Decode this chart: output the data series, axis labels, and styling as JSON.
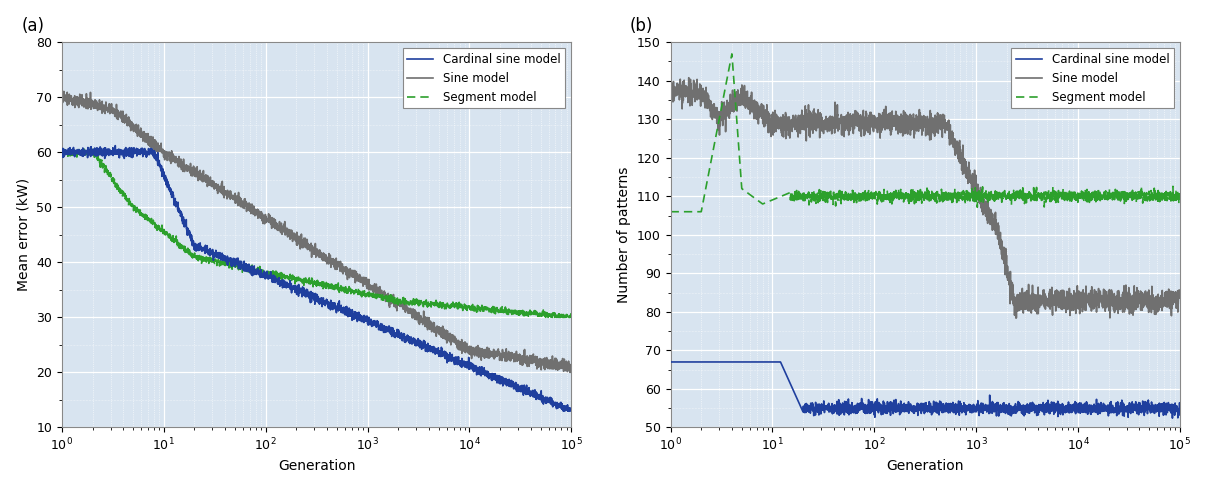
{
  "fig_width": 12.08,
  "fig_height": 4.9,
  "dpi": 100,
  "background_color": "#ffffff",
  "axes_facecolor": "#d8e4f0",
  "panel_a": {
    "label": "(a)",
    "xlabel": "Generation",
    "ylabel": "Mean error (kW)",
    "xlim": [
      1,
      100000
    ],
    "ylim": [
      10,
      80
    ],
    "yticks": [
      10,
      20,
      30,
      40,
      50,
      60,
      70,
      80
    ],
    "cardinal_color": "#1f3f9e",
    "sine_color": "#707070",
    "segment_color": "#2ca02c",
    "legend_labels": [
      "Cardinal sine model",
      "Sine model",
      "Segment model"
    ]
  },
  "panel_b": {
    "label": "(b)",
    "xlabel": "Generation",
    "ylabel": "Number of patterns",
    "xlim": [
      1,
      100000
    ],
    "ylim": [
      50,
      150
    ],
    "yticks": [
      50,
      60,
      70,
      80,
      90,
      100,
      110,
      120,
      130,
      140,
      150
    ],
    "cardinal_color": "#1f3f9e",
    "sine_color": "#707070",
    "segment_color": "#2ca02c",
    "legend_labels": [
      "Cardinal sine model",
      "Sine model",
      "Segment model"
    ]
  }
}
